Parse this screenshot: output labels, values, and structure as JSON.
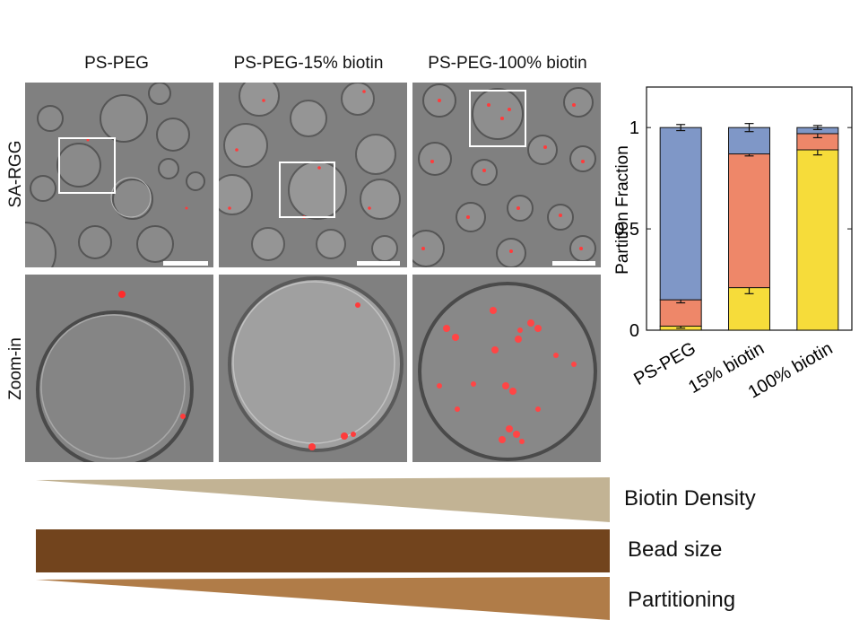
{
  "panels": {
    "column_labels": [
      "PS-PEG",
      "PS-PEG-15% biotin",
      "PS-PEG-100% biotin"
    ],
    "row_labels": [
      "SA-RGG",
      "Zoom-in"
    ]
  },
  "gradients": {
    "biotin_density": {
      "label": "Biotin Density",
      "color": "#c2b394"
    },
    "bead_size": {
      "label": "Bead size",
      "color": "#72441d"
    },
    "partitioning": {
      "label": "Partitioning",
      "color": "#b07c48"
    }
  },
  "colors": {
    "blue": "#7f97c7",
    "orange": "#ee8769",
    "yellow": "#f6dc3a",
    "fluorescence": "#ff3b3b"
  },
  "chart_data": {
    "type": "bar",
    "stacked": true,
    "categories": [
      "PS-PEG",
      "15% biotin",
      "100% biotin"
    ],
    "ylabel": "Partition Fraction",
    "ylim": [
      0,
      1.2
    ],
    "yticks": [
      0,
      0.5,
      1
    ],
    "ytick_labels": [
      "0",
      "0.5",
      "1"
    ],
    "segments": [
      {
        "color": "yellow",
        "values": [
          0.02,
          0.21,
          0.89
        ],
        "top_error": [
          0.01,
          0.03,
          0.025
        ]
      },
      {
        "color": "orange",
        "values": [
          0.13,
          0.66,
          0.08
        ],
        "top_error": [
          0.015,
          0.01,
          0.02
        ]
      },
      {
        "color": "blue",
        "values": [
          0.85,
          0.13,
          0.03
        ],
        "top_error": [
          0.015,
          0.02,
          0.01
        ]
      }
    ],
    "grid": false,
    "legend": "none"
  }
}
